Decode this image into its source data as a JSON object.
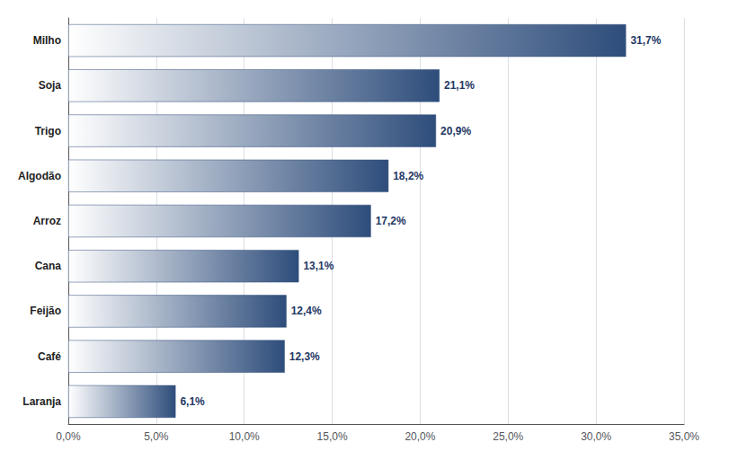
{
  "chart_data": {
    "type": "bar",
    "orientation": "horizontal",
    "categories": [
      "Milho",
      "Soja",
      "Trigo",
      "Algodão",
      "Arroz",
      "Cana",
      "Feijão",
      "Café",
      "Laranja"
    ],
    "values": [
      31.7,
      21.1,
      20.9,
      18.2,
      17.2,
      13.1,
      12.4,
      12.3,
      6.1
    ],
    "value_labels": [
      "31,7%",
      "21,1%",
      "20,9%",
      "18,2%",
      "17,2%",
      "13,1%",
      "12,4%",
      "12,3%",
      "6,1%"
    ],
    "data_labels": true,
    "color": "#2e4d7b",
    "xlim": [
      0,
      35.0
    ],
    "xticks": [
      {
        "value": 0,
        "label": "0,0%"
      },
      {
        "value": 5,
        "label": "5,0%"
      },
      {
        "value": 10,
        "label": "10,0%"
      },
      {
        "value": 15,
        "label": "15,0%"
      },
      {
        "value": 20,
        "label": "20,0%"
      },
      {
        "value": 25,
        "label": "25,0%"
      },
      {
        "value": 30,
        "label": "30,0%"
      },
      {
        "value": 35,
        "label": "35,0%"
      }
    ],
    "grid": true
  }
}
